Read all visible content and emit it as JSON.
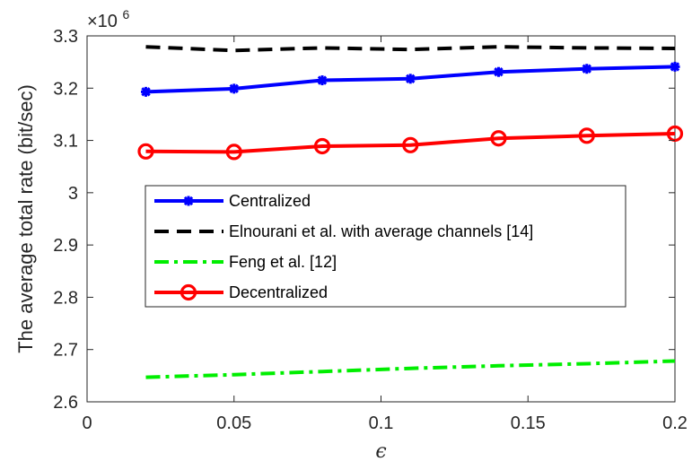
{
  "chart_data": {
    "type": "line",
    "xlabel": "ϵ",
    "ylabel": "The average total rate (bit/sec)",
    "exponent_base": "×10",
    "exponent_power": "6",
    "xlim": [
      0,
      0.2
    ],
    "ylim": [
      2.6,
      3.3
    ],
    "xticks": [
      0,
      0.05,
      0.1,
      0.15,
      0.2
    ],
    "xtick_labels": [
      "0",
      "0.05",
      "0.1",
      "0.15",
      "0.2"
    ],
    "yticks": [
      2.6,
      2.7,
      2.8,
      2.9,
      3.0,
      3.1,
      3.2,
      3.3
    ],
    "ytick_labels": [
      "2.6",
      "2.7",
      "2.8",
      "2.9",
      "3",
      "3.1",
      "3.2",
      "3.3"
    ],
    "grid": false,
    "legend_position": "center-left",
    "x": [
      0.02,
      0.05,
      0.08,
      0.11,
      0.14,
      0.17,
      0.2
    ],
    "series": [
      {
        "name": "Centralized",
        "color": "#0000ff",
        "style": "solid",
        "marker": "asterisk",
        "values": [
          3.193,
          3.199,
          3.215,
          3.218,
          3.231,
          3.237,
          3.241
        ]
      },
      {
        "name": "Elnourani et al. with average channels [14]",
        "color": "#000000",
        "style": "dashed",
        "marker": "none",
        "values": [
          3.279,
          3.272,
          3.277,
          3.274,
          3.279,
          3.277,
          3.276
        ]
      },
      {
        "name": "Feng et al. [12]",
        "color": "#00ee00",
        "style": "dashdot",
        "marker": "none",
        "values": [
          2.647,
          2.652,
          2.658,
          2.664,
          2.669,
          2.673,
          2.678
        ]
      },
      {
        "name": "Decentralized",
        "color": "#ff0000",
        "style": "solid",
        "marker": "circle",
        "values": [
          3.079,
          3.078,
          3.089,
          3.091,
          3.104,
          3.109,
          3.113
        ]
      }
    ]
  }
}
